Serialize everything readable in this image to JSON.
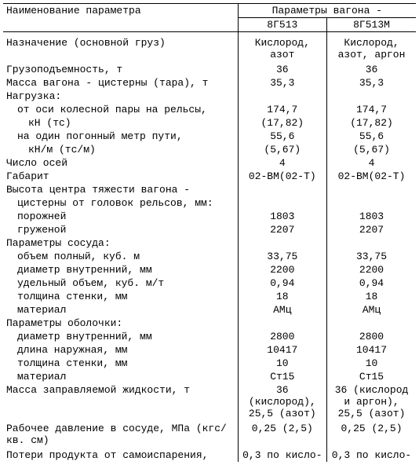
{
  "header": {
    "param_label": "Наименование параметра",
    "group_label": "Параметры вагона -",
    "col_a": "8Г513",
    "col_b": "8Г513М"
  },
  "rows": [
    {
      "label": "Назначение (основной груз)",
      "a": "Кислород, азот",
      "b": "Кислород, азот, аргон",
      "indent": 0,
      "pad": "pad-top"
    },
    {
      "label": "Грузоподъемность, т",
      "a": "36",
      "b": "36",
      "indent": 0,
      "pad": "pad-top-sm"
    },
    {
      "label": "Масса вагона - цистерны (тара), т",
      "a": "35,3",
      "b": "35,3",
      "indent": 0
    },
    {
      "label": "Нагрузка:",
      "a": "",
      "b": "",
      "indent": 0
    },
    {
      "label": "от оси колесной пары на рельсы,",
      "a": "174,7",
      "b": "174,7",
      "indent": 1
    },
    {
      "label": "кН (тс)",
      "a": "(17,82)",
      "b": "(17,82)",
      "indent": 2
    },
    {
      "label": "на один погонный метр пути,",
      "a": "55,6",
      "b": "55,6",
      "indent": 1
    },
    {
      "label": "кН/м (тс/м)",
      "a": "(5,67)",
      "b": "(5,67)",
      "indent": 2
    },
    {
      "label": "Число осей",
      "a": "4",
      "b": "4",
      "indent": 0
    },
    {
      "label": "Габарит",
      "a": "02-ВМ(02-Т)",
      "b": "02-ВМ(02-Т)",
      "indent": 0
    },
    {
      "label": "Высота центра тяжести вагона -",
      "a": "",
      "b": "",
      "indent": 0
    },
    {
      "label": "цистерны от головок рельсов, мм:",
      "a": "",
      "b": "",
      "indent": 1
    },
    {
      "label": "порожней",
      "a": "1803",
      "b": "1803",
      "indent": 1
    },
    {
      "label": "груженой",
      "a": "2207",
      "b": "2207",
      "indent": 1
    },
    {
      "label": "Параметры сосуда:",
      "a": "",
      "b": "",
      "indent": 0
    },
    {
      "label": "объем полный, куб. м",
      "a": "33,75",
      "b": "33,75",
      "indent": 1
    },
    {
      "label": "диаметр внутренний, мм",
      "a": "2200",
      "b": "2200",
      "indent": 1
    },
    {
      "label": "удельный объем, куб. м/т",
      "a": "0,94",
      "b": "0,94",
      "indent": 1
    },
    {
      "label": "толщина стенки, мм",
      "a": "18",
      "b": "18",
      "indent": 1
    },
    {
      "label": "материал",
      "a": "АМц",
      "b": "АМц",
      "indent": 1
    },
    {
      "label": "Параметры оболочки:",
      "a": "",
      "b": "",
      "indent": 0
    },
    {
      "label": "диаметр внутренний, мм",
      "a": "2800",
      "b": "2800",
      "indent": 1
    },
    {
      "label": "длина наружная, мм",
      "a": "10417",
      "b": "10417",
      "indent": 1
    },
    {
      "label": "толщина стенки, мм",
      "a": "10",
      "b": "10",
      "indent": 1
    },
    {
      "label": "материал",
      "a": "Ст15",
      "b": "Ст15",
      "indent": 1
    },
    {
      "label": "Масса заправляемой жидкости, т",
      "a": "36 (кислород), 25,5 (азот)",
      "b": "36 (кислород и аргон), 25,5 (азот)",
      "indent": 0
    },
    {
      "label": "Рабочее давление в сосуде, МПа (кгс/кв. см)",
      "a": "0,25 (2,5)",
      "b": "0,25 (2,5)",
      "indent": 0,
      "pad": "pad-top-sm"
    },
    {
      "label": "Потери продукта от самоиспарения,",
      "a": "0,3 по кисло-",
      "b": "0,3 по кисло-",
      "indent": 0,
      "pad": "pad-top-sm"
    }
  ]
}
